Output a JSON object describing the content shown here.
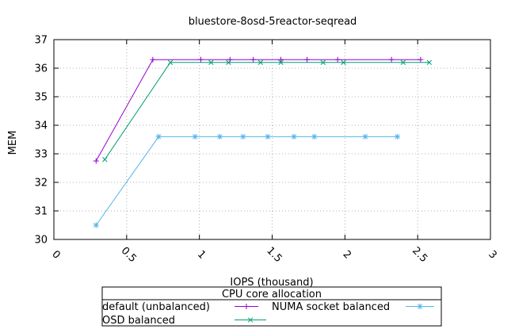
{
  "chart_data": {
    "type": "line",
    "title": "bluestore-8osd-5reactor-seqread",
    "xlabel": "IOPS (thousand)",
    "ylabel": "MEM",
    "xlim": [
      0,
      3
    ],
    "ylim": [
      30,
      37
    ],
    "xticks": [
      0,
      0.5,
      1,
      1.5,
      2,
      2.5,
      3
    ],
    "yticks": [
      30,
      31,
      32,
      33,
      34,
      35,
      36,
      37
    ],
    "grid": true,
    "legend": {
      "title": "CPU core allocation",
      "placement": "bottom-center"
    },
    "series": [
      {
        "name": "default (unbalanced)",
        "color": "#9400d3",
        "marker": "plus",
        "x": [
          0.29,
          0.68,
          1.01,
          1.21,
          1.37,
          1.56,
          1.74,
          1.95,
          2.32,
          2.52
        ],
        "y": [
          32.75,
          36.3,
          36.3,
          36.3,
          36.3,
          36.3,
          36.3,
          36.3,
          36.3,
          36.3
        ]
      },
      {
        "name": "NUMA socket balanced",
        "color": "#56b4e9",
        "marker": "star",
        "x": [
          0.29,
          0.72,
          0.97,
          1.14,
          1.3,
          1.47,
          1.65,
          1.79,
          2.14,
          2.36
        ],
        "y": [
          30.5,
          33.6,
          33.6,
          33.6,
          33.6,
          33.6,
          33.6,
          33.6,
          33.6,
          33.6
        ]
      },
      {
        "name": "OSD balanced",
        "color": "#009e73",
        "marker": "cross",
        "x": [
          0.35,
          0.8,
          1.08,
          1.2,
          1.42,
          1.56,
          1.85,
          1.99,
          2.4,
          2.58
        ],
        "y": [
          32.8,
          36.2,
          36.2,
          36.2,
          36.2,
          36.2,
          36.2,
          36.2,
          36.2,
          36.2
        ]
      }
    ]
  }
}
